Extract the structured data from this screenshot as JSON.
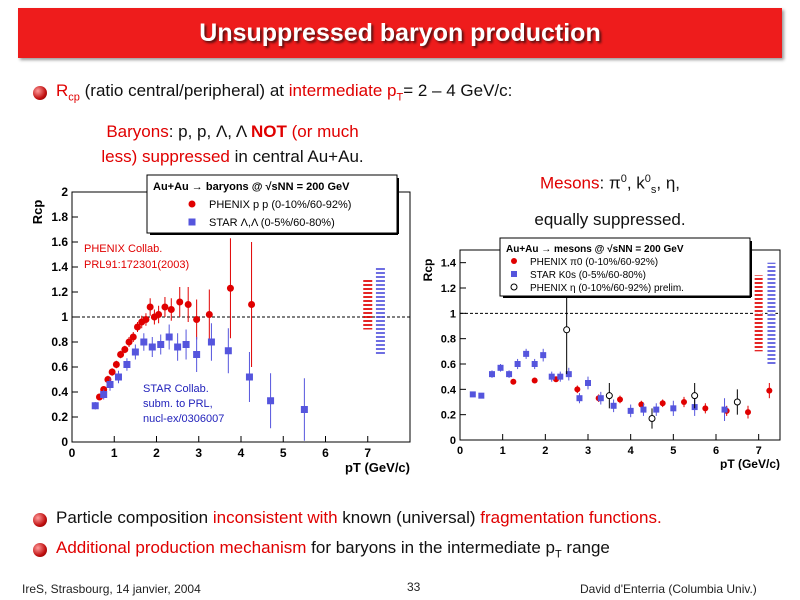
{
  "slide": {
    "title": "Unsuppressed baryon production",
    "bullet1": {
      "a": "R",
      "sub": "cp",
      "b": " (ratio central/peripheral) at ",
      "c": "intermediate",
      "d": " p",
      "sub2": "T",
      "e": "= 2 – 4 GeV/c:"
    },
    "baryons": {
      "label": "Baryons",
      "list": ":  p, p, Λ, Λ ",
      "not": "NOT",
      "rest1": " (or much",
      "red2": "less) suppressed",
      "rest2": " in central Au+Au."
    },
    "mesons": {
      "label": "Mesons",
      "list": ":  π",
      "list_sup": "0",
      "list2": ", k",
      "list2_sup": "0",
      "list2_sub": "s",
      "list3": ", η,",
      "line2": "equally suppressed."
    },
    "bullet2": {
      "a": "Particle composition ",
      "b": "inconsistent with",
      "c": " known (universal) ",
      "d": "fragmentation functions."
    },
    "bullet3": {
      "a": "Additional production mechanism",
      "b": " for baryons in the intermediate p",
      "sub": "T",
      "c": " range"
    },
    "footer": {
      "left": "IreS, Strasbourg, 14 janvier, 2004",
      "page": "33",
      "right": "David d'Enterria (Columbia Univ.)"
    },
    "colors": {
      "title_bg": "#ee1c1c",
      "accent": "#e00000"
    }
  },
  "chart_data": [
    {
      "type": "scatter",
      "legend_title": "Au+Au → baryons @ √sNN = 200 GeV",
      "xlabel": "pT (GeV/c)",
      "ylabel": "Rcp",
      "xlim": [
        0,
        8
      ],
      "ylim": [
        0,
        2
      ],
      "xticks": [
        "0",
        "1",
        "2",
        "3",
        "4",
        "5",
        "6",
        "7"
      ],
      "yticks": [
        "0",
        "0.2",
        "0.4",
        "0.6",
        "0.8",
        "1",
        "1.2",
        "1.4",
        "1.6",
        "1.8",
        "2"
      ],
      "legend_placement": "top-right",
      "annotations": [
        "PHENIX Collab.",
        "PRL91:172301(2003)",
        "STAR Collab.",
        "subm. to PRL,",
        "nucl-ex/0306007"
      ],
      "series": [
        {
          "name": "PHENIX p p (0-10%/60-92%)",
          "color": "#e00000",
          "marker": "circle",
          "points": [
            [
              0.65,
              0.36
            ],
            [
              0.75,
              0.42
            ],
            [
              0.85,
              0.5
            ],
            [
              0.95,
              0.56
            ],
            [
              1.05,
              0.62
            ],
            [
              1.15,
              0.7
            ],
            [
              1.25,
              0.74
            ],
            [
              1.35,
              0.8
            ],
            [
              1.45,
              0.84
            ],
            [
              1.55,
              0.92
            ],
            [
              1.65,
              0.96
            ],
            [
              1.75,
              0.98
            ],
            [
              1.85,
              1.08
            ],
            [
              1.95,
              1.0
            ],
            [
              2.05,
              1.02
            ],
            [
              2.2,
              1.08
            ],
            [
              2.35,
              1.06
            ],
            [
              2.55,
              1.12
            ],
            [
              2.75,
              1.1
            ],
            [
              2.95,
              0.98
            ],
            [
              3.25,
              1.02
            ],
            [
              3.75,
              1.23
            ],
            [
              4.25,
              1.1
            ]
          ],
          "errors": [
            0.02,
            0.02,
            0.03,
            0.03,
            0.03,
            0.03,
            0.03,
            0.04,
            0.04,
            0.04,
            0.05,
            0.05,
            0.07,
            0.06,
            0.07,
            0.08,
            0.09,
            0.12,
            0.14,
            0.16,
            0.2,
            0.4,
            0.5
          ]
        },
        {
          "name": "STAR Λ,Λ (0-5%/60-80%)",
          "color": "#5555dd",
          "marker": "square",
          "points": [
            [
              0.55,
              0.29
            ],
            [
              0.75,
              0.38
            ],
            [
              0.9,
              0.46
            ],
            [
              1.1,
              0.52
            ],
            [
              1.3,
              0.62
            ],
            [
              1.5,
              0.72
            ],
            [
              1.7,
              0.8
            ],
            [
              1.9,
              0.76
            ],
            [
              2.1,
              0.78
            ],
            [
              2.3,
              0.84
            ],
            [
              2.5,
              0.76
            ],
            [
              2.7,
              0.78
            ],
            [
              2.95,
              0.7
            ],
            [
              3.3,
              0.8
            ],
            [
              3.7,
              0.73
            ],
            [
              4.2,
              0.52
            ],
            [
              4.7,
              0.33
            ],
            [
              5.5,
              0.26
            ]
          ],
          "errors": [
            0.03,
            0.04,
            0.05,
            0.05,
            0.05,
            0.06,
            0.07,
            0.08,
            0.08,
            0.1,
            0.11,
            0.12,
            0.14,
            0.15,
            0.18,
            0.2,
            0.22,
            0.25
          ]
        }
      ],
      "systematic_bands": [
        {
          "x": 7.0,
          "low": 0.9,
          "high": 1.3,
          "color": "#e00000"
        },
        {
          "x": 7.3,
          "low": 0.7,
          "high": 1.4,
          "color": "#5555dd"
        }
      ]
    },
    {
      "type": "scatter",
      "legend_title": "Au+Au → mesons @ √sNN = 200 GeV",
      "xlabel": "pT (GeV/c)",
      "ylabel": "Rcp",
      "xlim": [
        0,
        7.5
      ],
      "ylim": [
        0,
        1.5
      ],
      "xticks": [
        "0",
        "1",
        "2",
        "3",
        "4",
        "5",
        "6",
        "7"
      ],
      "yticks": [
        "0",
        "0.2",
        "0.4",
        "0.6",
        "0.8",
        "1",
        "1.2",
        "1.4"
      ],
      "legend_placement": "top-right",
      "series": [
        {
          "name": "PHENIX π0 (0-10%/60-92%)",
          "color": "#e00000",
          "marker": "circle",
          "points": [
            [
              1.25,
              0.46
            ],
            [
              1.75,
              0.47
            ],
            [
              2.25,
              0.48
            ],
            [
              2.75,
              0.4
            ],
            [
              3.25,
              0.33
            ],
            [
              3.75,
              0.32
            ],
            [
              4.25,
              0.28
            ],
            [
              4.75,
              0.29
            ],
            [
              5.25,
              0.3
            ],
            [
              5.75,
              0.25
            ],
            [
              6.25,
              0.23
            ],
            [
              6.75,
              0.22
            ],
            [
              7.25,
              0.39
            ]
          ],
          "errors": [
            0.02,
            0.02,
            0.02,
            0.03,
            0.03,
            0.03,
            0.03,
            0.03,
            0.04,
            0.04,
            0.04,
            0.05,
            0.06
          ]
        },
        {
          "name": "STAR K0s (0-5%/60-80%)",
          "color": "#5555dd",
          "marker": "square",
          "points": [
            [
              0.3,
              0.36
            ],
            [
              0.5,
              0.35
            ],
            [
              0.75,
              0.52
            ],
            [
              0.95,
              0.57
            ],
            [
              1.15,
              0.52
            ],
            [
              1.35,
              0.6
            ],
            [
              1.55,
              0.68
            ],
            [
              1.75,
              0.6
            ],
            [
              1.95,
              0.67
            ],
            [
              2.15,
              0.5
            ],
            [
              2.35,
              0.5
            ],
            [
              2.55,
              0.52
            ],
            [
              2.8,
              0.33
            ],
            [
              3.0,
              0.45
            ],
            [
              3.3,
              0.33
            ],
            [
              3.6,
              0.27
            ],
            [
              4.0,
              0.23
            ],
            [
              4.3,
              0.24
            ],
            [
              4.6,
              0.24
            ],
            [
              5.0,
              0.25
            ],
            [
              5.5,
              0.26
            ],
            [
              6.2,
              0.24
            ]
          ],
          "errors": [
            0.02,
            0.02,
            0.03,
            0.03,
            0.03,
            0.04,
            0.04,
            0.04,
            0.05,
            0.04,
            0.04,
            0.05,
            0.04,
            0.05,
            0.05,
            0.05,
            0.05,
            0.05,
            0.05,
            0.06,
            0.07,
            0.09
          ]
        },
        {
          "name": "PHENIX η (0-10%/60-92%) prelim.",
          "color": "#000000",
          "marker": "open-circle",
          "points": [
            [
              2.5,
              0.87
            ],
            [
              3.5,
              0.35
            ],
            [
              4.5,
              0.17
            ],
            [
              5.5,
              0.35
            ],
            [
              6.5,
              0.3
            ]
          ],
          "errors": [
            0.35,
            0.1,
            0.08,
            0.1,
            0.1
          ]
        }
      ],
      "systematic_bands": [
        {
          "x": 7.0,
          "low": 0.7,
          "high": 1.3,
          "color": "#e00000"
        },
        {
          "x": 7.3,
          "low": 0.6,
          "high": 1.4,
          "color": "#5555dd"
        }
      ]
    }
  ]
}
